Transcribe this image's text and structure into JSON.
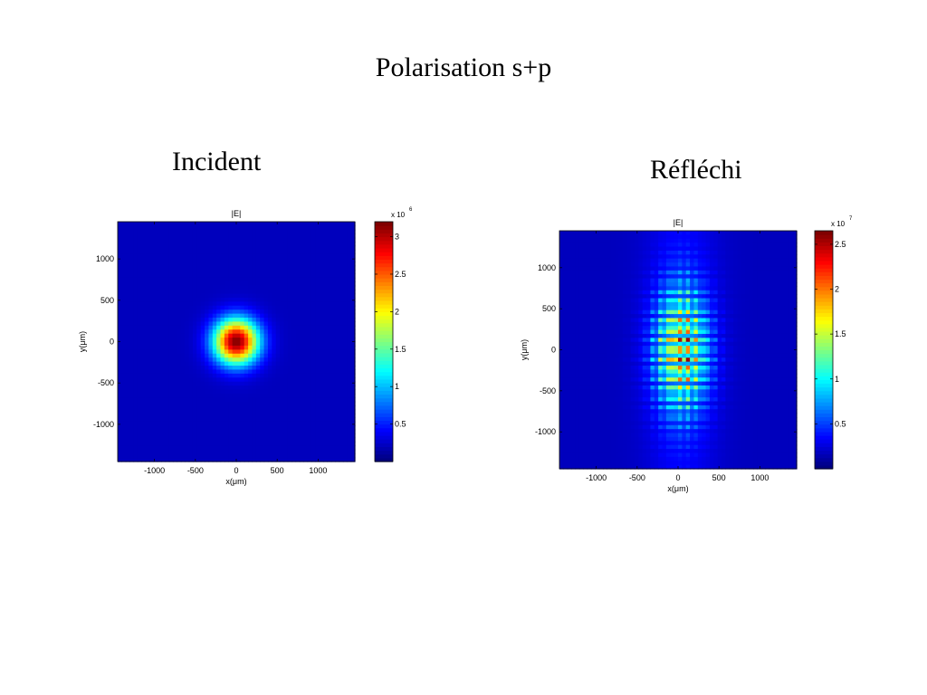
{
  "slide": {
    "title": "Polarisation s+p"
  },
  "chart_data": [
    {
      "type": "heatmap",
      "panel_title": "Incident",
      "title": "|E|",
      "xlabel": "x(μm)",
      "ylabel": "y(μm)",
      "xlim": [
        -1450,
        1450
      ],
      "ylim": [
        -1450,
        1450
      ],
      "xticks": [
        -1000,
        -500,
        0,
        500,
        1000
      ],
      "yticks": [
        1000,
        500,
        0,
        -500,
        -1000
      ],
      "colorbar": {
        "exponent_label": "x 10",
        "exponent": "6",
        "range": [
          0,
          3.2
        ],
        "ticks": [
          0.5,
          1,
          1.5,
          2,
          2.5,
          3
        ]
      },
      "pattern": "gaussian spot centered at (0,0), radius about 300 μm, peak about 3.2"
    },
    {
      "type": "heatmap",
      "panel_title": "Réfléchi",
      "title": "|E|",
      "xlabel": "x(μm)",
      "ylabel": "y(μm)",
      "xlim": [
        -1450,
        1450
      ],
      "ylim": [
        -1450,
        1450
      ],
      "xticks": [
        -1000,
        -500,
        0,
        500,
        1000
      ],
      "yticks": [
        1000,
        500,
        0,
        -500,
        -1000
      ],
      "colorbar": {
        "exponent_label": "x 10",
        "exponent": "7",
        "range": [
          0,
          2.65
        ],
        "ticks": [
          0.5,
          1,
          1.5,
          2,
          2.5
        ]
      },
      "pattern": "vertical band of interference fringes centered near x=50, peak about 2.65 near the center"
    }
  ]
}
